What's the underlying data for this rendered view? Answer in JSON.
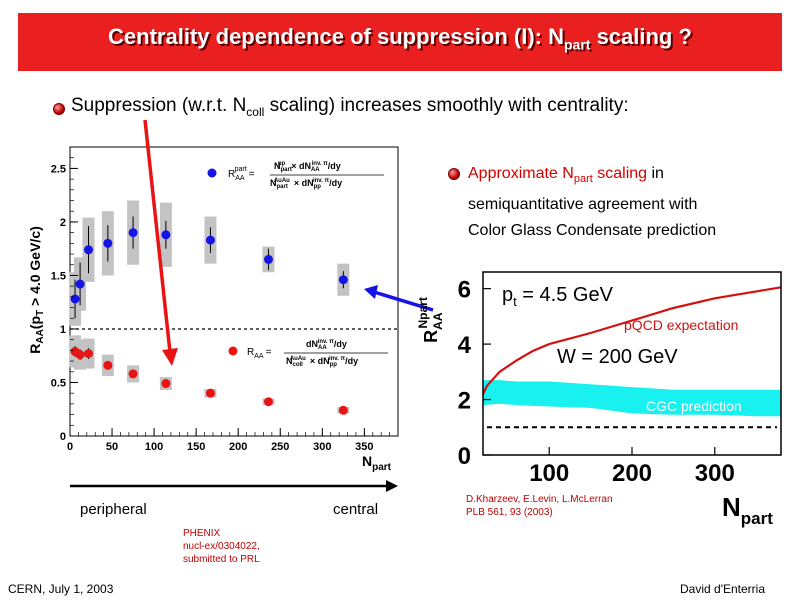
{
  "slide": {
    "title_main": "Centrality dependence of suppression (I): N",
    "title_sub": "part",
    "title_end": " scaling ?",
    "bullet1_a": "Suppression (w.r.t. N",
    "bullet1_sub": "coll",
    "bullet1_b": " scaling) increases smoothly with centrality:",
    "bullet2_red_a": "Approximate N",
    "bullet2_red_sub": "part",
    "bullet2_red_b": " scaling",
    "bullet2_rest_a": " in",
    "bullet2_line2": "semiquantitative agreement with",
    "bullet2_line3": "Color Glass Condensate prediction",
    "peripheral": "peripheral",
    "central": "central",
    "phenix_1": "PHENIX",
    "phenix_2": "nucl-ex/0304022,",
    "phenix_3": "submitted to PRL",
    "cite_1": "D.Kharzeev, E.Levin, L.McLerran",
    "cite_2": "PLB 561, 93 (2003)",
    "footer_left": "CERN, July 1, 2003",
    "footer_right": "David d'Enterria"
  },
  "colors": {
    "title_bg": "#ea1f1f",
    "blue_series": "#1414e6",
    "red_series": "#e81414",
    "cgc_band": "#19f0f0",
    "pqcd_line": "#d41010"
  },
  "chart_data": [
    {
      "type": "scatter",
      "ylabel": "R_AA(p_T > 4.0 GeV/c)",
      "xlabel": "N_part",
      "ylim": [
        0,
        2.7
      ],
      "xlim": [
        0,
        390
      ],
      "xticks": [
        "0",
        "50",
        "100",
        "150",
        "200",
        "250",
        "300",
        "350"
      ],
      "yticks": [
        "0",
        "0.5",
        "1",
        "1.5",
        "2",
        "2.5"
      ],
      "reference_line": 1,
      "series": [
        {
          "name": "R_AA^part",
          "color": "#1414e6",
          "x": [
            6,
            12,
            22,
            45,
            75,
            114,
            167,
            236,
            325
          ],
          "y": [
            1.28,
            1.42,
            1.74,
            1.8,
            1.9,
            1.88,
            1.83,
            1.65,
            1.46
          ],
          "err": [
            0.18,
            0.2,
            0.22,
            0.17,
            0.15,
            0.13,
            0.12,
            0.1,
            0.08
          ],
          "sys": [
            0.25,
            0.25,
            0.3,
            0.3,
            0.3,
            0.3,
            0.22,
            0.12,
            0.15
          ]
        },
        {
          "name": "R_AA",
          "color": "#e81414",
          "x": [
            6,
            12,
            22,
            45,
            75,
            114,
            167,
            236,
            325
          ],
          "y": [
            0.79,
            0.76,
            0.77,
            0.66,
            0.58,
            0.49,
            0.4,
            0.32,
            0.24
          ],
          "err": [
            0.05,
            0.05,
            0.05,
            0.04,
            0.03,
            0.03,
            0.02,
            0.02,
            0.02
          ],
          "sys": [
            0.15,
            0.14,
            0.14,
            0.1,
            0.08,
            0.06,
            0.04,
            0.03,
            0.03
          ]
        }
      ],
      "legend": [
        {
          "lhs": "R",
          "lhs_sub": "AA",
          "lhs_sup": "part",
          "eq": "=",
          "num_a": "N",
          "num_a_sub": "part",
          "num_a_sup": "pp",
          "num_b": "× dN",
          "num_b_sub": "AA",
          "num_b_sup": "inv. π",
          "num_c": "/dy",
          "den_a": "N",
          "den_a_sub": "part",
          "den_a_sup": "AuAu",
          "den_b": "× dN",
          "den_b_sub": "pp",
          "den_b_sup": "inv. π",
          "den_c": "/dy"
        },
        {
          "lhs": "R",
          "lhs_sub": "AA",
          "eq": "=",
          "num_a": "dN",
          "num_a_sub": "AA",
          "num_a_sup": "inv. π",
          "num_c": "/dy",
          "den_a": "N",
          "den_a_sub": "coll",
          "den_a_sup": "AuAu",
          "den_b": "× dN",
          "den_b_sub": "pp",
          "den_b_sup": "inv. π",
          "den_c": "/dy"
        }
      ]
    },
    {
      "type": "line",
      "ylabel": "R_AA^Npart",
      "xlabel": "N_part",
      "xlim": [
        20,
        380
      ],
      "ylim": [
        0,
        6.6
      ],
      "xticks": [
        "100",
        "200",
        "300"
      ],
      "yticks": [
        "0",
        "2",
        "4",
        "6"
      ],
      "annotation_1": "p",
      "annotation_1_sub": "t",
      "annotation_1_rest": " = 4.5 GeV",
      "annotation_2": "W = 200 GeV",
      "reference_line": 1,
      "series": [
        {
          "name": "pQCD expectation",
          "color": "#d41010",
          "x": [
            20,
            25,
            40,
            60,
            80,
            100,
            150,
            200,
            250,
            300,
            350,
            380
          ],
          "y": [
            2.2,
            2.5,
            3.0,
            3.4,
            3.75,
            4.0,
            4.4,
            4.85,
            5.3,
            5.65,
            5.9,
            6.05
          ]
        },
        {
          "name": "CGC prediction",
          "color": "#19f0f0",
          "x": [
            20,
            40,
            60,
            100,
            150,
            200,
            250,
            300,
            350,
            380
          ],
          "y_low": [
            1.8,
            1.85,
            1.8,
            1.75,
            1.7,
            1.5,
            1.45,
            1.45,
            1.4,
            1.4
          ],
          "y_high": [
            2.7,
            2.7,
            2.65,
            2.65,
            2.55,
            2.45,
            2.35,
            2.35,
            2.35,
            2.35
          ]
        }
      ]
    }
  ]
}
